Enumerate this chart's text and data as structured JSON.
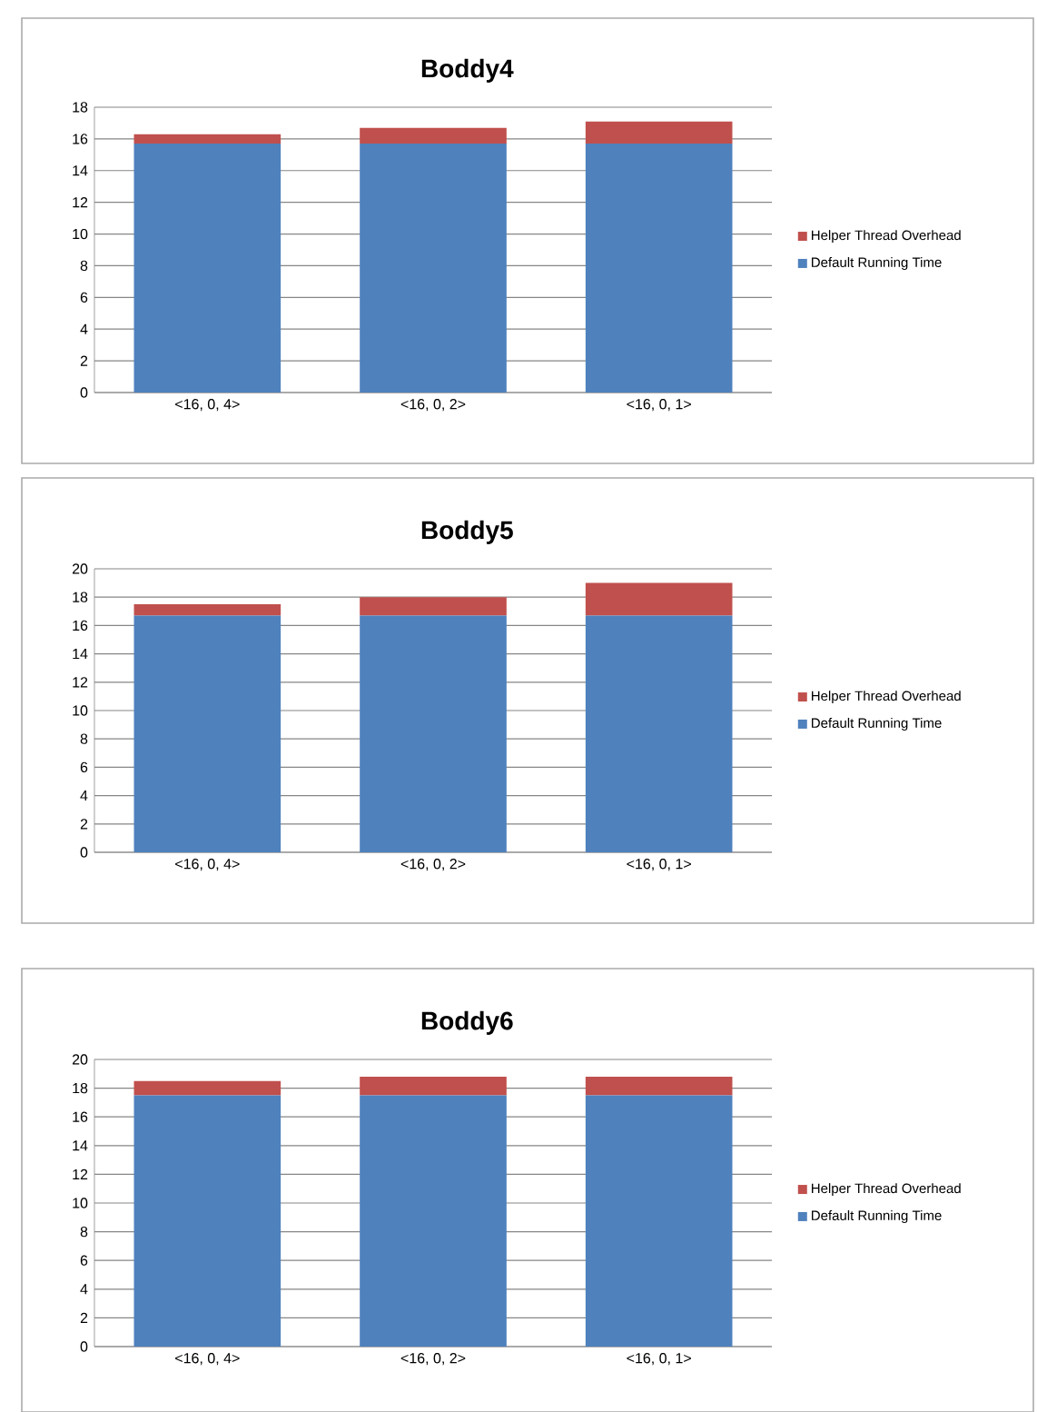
{
  "chart_data": [
    {
      "type": "bar",
      "title": "Boddy4",
      "stacked": true,
      "categories": [
        "<16, 0, 4>",
        "<16, 0, 2>",
        "<16, 0, 1>"
      ],
      "ylim": [
        0,
        18
      ],
      "yticks": [
        0,
        2,
        4,
        6,
        8,
        10,
        12,
        14,
        16,
        18
      ],
      "grid": "y",
      "legend": "right",
      "series": [
        {
          "name": "Default Running Time",
          "color": "#4f81bd",
          "values": [
            15.7,
            15.7,
            15.7
          ]
        },
        {
          "name": "Helper Thread Overhead",
          "color": "#c0504d",
          "values": [
            0.6,
            1.0,
            1.4
          ]
        }
      ]
    },
    {
      "type": "bar",
      "title": "Boddy5",
      "stacked": true,
      "categories": [
        "<16, 0, 4>",
        "<16, 0, 2>",
        "<16, 0, 1>"
      ],
      "ylim": [
        0,
        20
      ],
      "yticks": [
        0,
        2,
        4,
        6,
        8,
        10,
        12,
        14,
        16,
        18,
        20
      ],
      "grid": "y",
      "legend": "right",
      "series": [
        {
          "name": "Default Running Time",
          "color": "#4f81bd",
          "values": [
            16.7,
            16.7,
            16.7
          ]
        },
        {
          "name": "Helper Thread Overhead",
          "color": "#c0504d",
          "values": [
            0.8,
            1.3,
            2.3
          ]
        }
      ]
    },
    {
      "type": "bar",
      "title": "Boddy6",
      "stacked": true,
      "categories": [
        "<16, 0, 4>",
        "<16, 0, 2>",
        "<16, 0, 1>"
      ],
      "ylim": [
        0,
        20
      ],
      "yticks": [
        0,
        2,
        4,
        6,
        8,
        10,
        12,
        14,
        16,
        18,
        20
      ],
      "grid": "y",
      "legend": "right",
      "series": [
        {
          "name": "Default Running Time",
          "color": "#4f81bd",
          "values": [
            17.5,
            17.5,
            17.5
          ]
        },
        {
          "name": "Helper Thread Overhead",
          "color": "#c0504d",
          "values": [
            1.0,
            1.3,
            1.3
          ]
        }
      ]
    }
  ]
}
